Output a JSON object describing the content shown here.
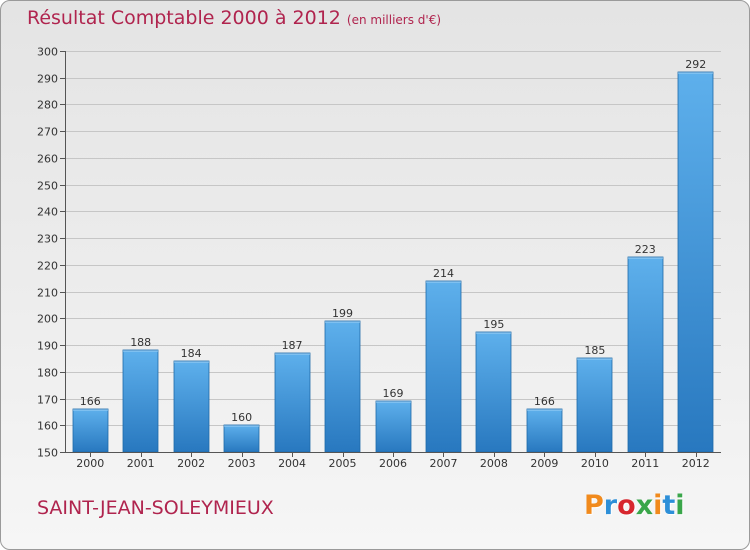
{
  "title": "Résultat Comptable 2000 à 2012",
  "subtitle": "(en milliers d'€)",
  "commune": "SAINT-JEAN-SOLEYMIEUX",
  "logo": {
    "letters": [
      "P",
      "r",
      "o",
      "x",
      "i",
      "t",
      "i"
    ],
    "colors": [
      "#f18a1c",
      "#2d8fd8",
      "#d7262e",
      "#3aa64a",
      "#f18a1c",
      "#2d8fd8",
      "#3aa64a"
    ]
  },
  "colors": {
    "bar_light": "#5eb0ec",
    "bar_dark": "#2878bf",
    "title": "#b0244e"
  },
  "chart_data": {
    "type": "bar",
    "title": "Résultat Comptable 2000 à 2012",
    "xlabel": "",
    "ylabel": "",
    "ylim": [
      150,
      300
    ],
    "yticks": [
      150,
      160,
      170,
      180,
      190,
      200,
      210,
      220,
      230,
      240,
      250,
      260,
      270,
      280,
      290,
      300
    ],
    "categories": [
      "2000",
      "2001",
      "2002",
      "2003",
      "2004",
      "2005",
      "2006",
      "2007",
      "2008",
      "2009",
      "2010",
      "2011",
      "2012"
    ],
    "values": [
      166,
      188,
      184,
      160,
      187,
      199,
      169,
      214,
      195,
      166,
      185,
      223,
      292
    ],
    "grid": true
  }
}
